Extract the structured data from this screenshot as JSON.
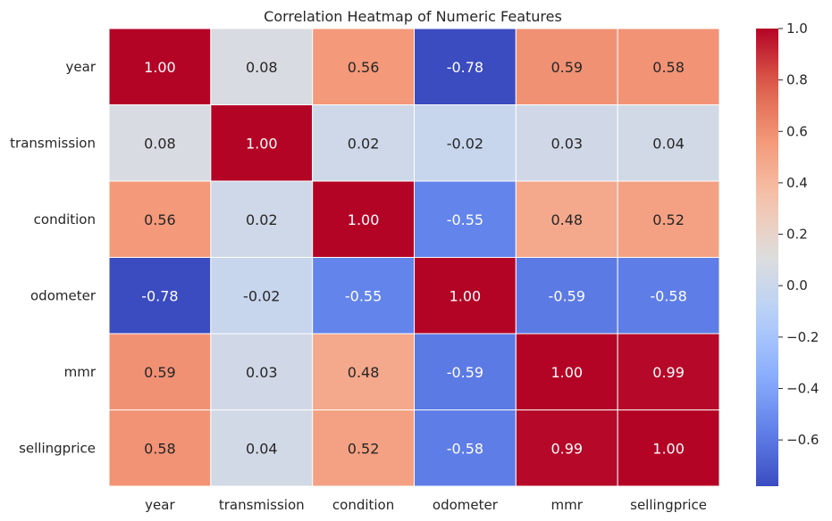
{
  "chart_data": {
    "type": "heatmap",
    "title": "Correlation Heatmap of Numeric Features",
    "xlabel": "",
    "ylabel": "",
    "x_categories": [
      "year",
      "transmission",
      "condition",
      "odometer",
      "mmr",
      "sellingprice"
    ],
    "y_categories": [
      "year",
      "transmission",
      "condition",
      "odometer",
      "mmr",
      "sellingprice"
    ],
    "values": [
      [
        1.0,
        0.08,
        0.56,
        -0.78,
        0.59,
        0.58
      ],
      [
        0.08,
        1.0,
        0.02,
        -0.02,
        0.03,
        0.04
      ],
      [
        0.56,
        0.02,
        1.0,
        -0.55,
        0.48,
        0.52
      ],
      [
        -0.78,
        -0.02,
        -0.55,
        1.0,
        -0.59,
        -0.58
      ],
      [
        0.59,
        0.03,
        0.48,
        -0.59,
        1.0,
        0.99
      ],
      [
        0.58,
        0.04,
        0.52,
        -0.58,
        0.99,
        1.0
      ]
    ],
    "value_format": "0.00",
    "colormap": "coolwarm",
    "colorbar": {
      "min": -0.78,
      "max": 1.0,
      "ticks": [
        1.0,
        0.8,
        0.6,
        0.4,
        0.2,
        0.0,
        -0.2,
        -0.4,
        -0.6
      ],
      "tick_labels": [
        "1.0",
        "0.8",
        "0.6",
        "0.4",
        "0.2",
        "0.0",
        "−0.2",
        "−0.4",
        "−0.6"
      ],
      "placement": "right"
    },
    "grid": false,
    "cell_border_color": "#ffffff",
    "annotation_colors": {
      "light": "#ffffff",
      "dark": "#262626"
    }
  }
}
